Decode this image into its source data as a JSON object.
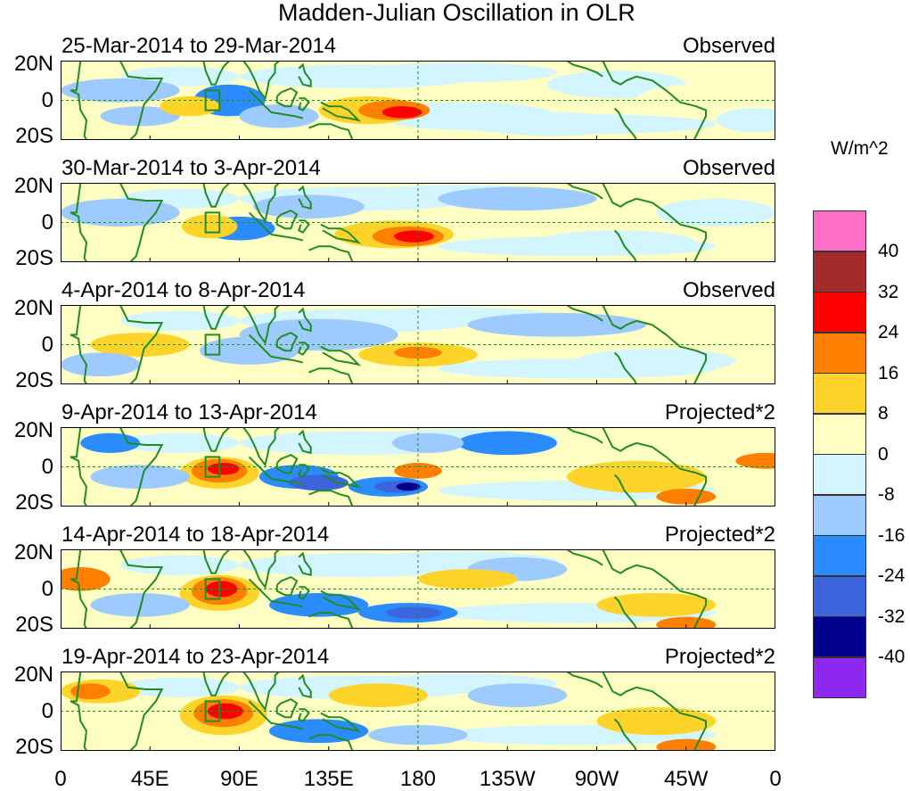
{
  "title": "Madden-Julian Oscillation in OLR",
  "units": "W/m^2",
  "y_ticks": [
    "20N",
    "0",
    "20S"
  ],
  "x_ticks": [
    "0",
    "45E",
    "90E",
    "135E",
    "180",
    "135W",
    "90W",
    "45W",
    "0"
  ],
  "panels": [
    {
      "period": "25-Mar-2014 to 29-Mar-2014",
      "type": "Observed"
    },
    {
      "period": "30-Mar-2014 to 3-Apr-2014",
      "type": "Observed"
    },
    {
      "period": "4-Apr-2014 to 8-Apr-2014",
      "type": "Observed"
    },
    {
      "period": "9-Apr-2014 to 13-Apr-2014",
      "type": "Projected*2"
    },
    {
      "period": "14-Apr-2014 to 18-Apr-2014",
      "type": "Projected*2"
    },
    {
      "period": "19-Apr-2014 to 23-Apr-2014",
      "type": "Projected*2"
    }
  ],
  "legend": {
    "labels": [
      "40",
      "32",
      "24",
      "16",
      "8",
      "0",
      "-8",
      "-16",
      "-24",
      "-32",
      "-40"
    ],
    "colors": [
      "#ff6ec7",
      "#a52a2a",
      "#ff0000",
      "#ff7f00",
      "#ffd42a",
      "#ffffc4",
      "#d2f5ff",
      "#9ecbff",
      "#2a8cff",
      "#3c64dc",
      "#00008c",
      "#8c28f0"
    ]
  }
}
